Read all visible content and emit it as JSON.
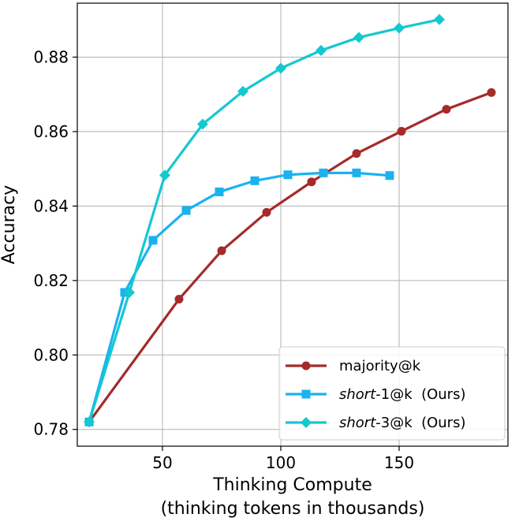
{
  "chart_data": {
    "type": "line",
    "title": "",
    "xlabel_line1": "Thinking Compute",
    "xlabel_line2": "(thinking tokens in thousands)",
    "ylabel": "Accuracy",
    "xlim": [
      14,
      196
    ],
    "ylim": [
      0.7755,
      0.8945
    ],
    "xticks": [
      50,
      100,
      150
    ],
    "yticks": [
      0.78,
      0.8,
      0.82,
      0.84,
      0.86,
      0.88
    ],
    "ytick_labels": [
      "0.78",
      "0.80",
      "0.82",
      "0.84",
      "0.86",
      "0.88"
    ],
    "xtick_labels": [
      "50",
      "100",
      "150"
    ],
    "grid": true,
    "legend_position": "lower-right",
    "series": [
      {
        "name": "majority@k",
        "legend_prefix": "",
        "legend_italic": "",
        "legend_suffix": "majority@k",
        "color": "#a52a2a",
        "marker": "circle",
        "x": [
          19,
          57,
          75,
          94,
          113,
          132,
          151,
          170,
          189
        ],
        "y": [
          0.782,
          0.815,
          0.828,
          0.8383,
          0.8465,
          0.8541,
          0.8601,
          0.866,
          0.8705
        ]
      },
      {
        "name": "short-1@k (Ours)",
        "legend_prefix": "",
        "legend_italic": "short",
        "legend_suffix": "-1@k  (Ours)",
        "color": "#1ab2ef",
        "marker": "square",
        "x": [
          19,
          34,
          46,
          60,
          74,
          89,
          103,
          118,
          132,
          146
        ],
        "y": [
          0.782,
          0.8168,
          0.8308,
          0.8388,
          0.8438,
          0.8468,
          0.8484,
          0.8489,
          0.8489,
          0.8482
        ]
      },
      {
        "name": "short-3@k (Ours)",
        "legend_prefix": "",
        "legend_italic": "short",
        "legend_suffix": "-3@k  (Ours)",
        "color": "#14c8d0",
        "marker": "diamond",
        "x": [
          19,
          36,
          51,
          67,
          84,
          100,
          117,
          133,
          150,
          167
        ],
        "y": [
          0.782,
          0.8168,
          0.8483,
          0.862,
          0.8708,
          0.877,
          0.8818,
          0.8853,
          0.8878,
          0.8901
        ]
      }
    ]
  }
}
